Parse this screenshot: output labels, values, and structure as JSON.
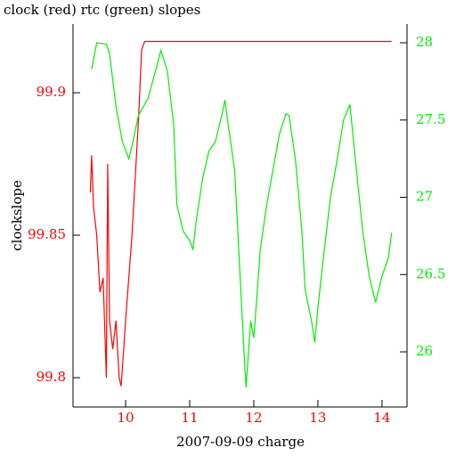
{
  "chart_data": {
    "type": "line",
    "title": "clock (red) rtc (green) slopes",
    "x_label": "2007-09-09 charge",
    "y_label": "clockslope",
    "xlim": [
      9.18,
      14.39
    ],
    "xticks": [
      10,
      11,
      12,
      13,
      14
    ],
    "ylim": [
      99.7897,
      99.9241
    ],
    "yticks": [
      99.8,
      99.85,
      99.9
    ],
    "y2lim": [
      25.643,
      28.121
    ],
    "y2ticks": [
      26,
      26.5,
      27,
      27.5,
      28
    ],
    "series": [
      {
        "name": "clock",
        "color": "#ff0000",
        "x": [
          9.45,
          9.47,
          9.5,
          9.55,
          9.6,
          9.65,
          9.7,
          9.72,
          9.75,
          9.8,
          9.85,
          9.9,
          9.93,
          9.97,
          10.0,
          10.05,
          10.1,
          10.15,
          10.2,
          10.25,
          10.28,
          10.3,
          14.15
        ],
        "values": [
          99.865,
          99.878,
          99.86,
          99.85,
          99.83,
          99.835,
          99.8,
          99.875,
          99.82,
          99.81,
          99.82,
          99.8,
          99.797,
          99.81,
          99.82,
          99.835,
          99.85,
          99.87,
          99.89,
          99.915,
          99.917,
          99.918,
          99.918
        ]
      },
      {
        "name": "rtc",
        "color": "#00ee00",
        "axis": "y2",
        "x": [
          9.47,
          9.55,
          9.7,
          9.75,
          9.85,
          9.95,
          10.05,
          10.1,
          10.2,
          10.35,
          10.5,
          10.55,
          10.65,
          10.75,
          10.8,
          10.9,
          11.0,
          11.05,
          11.1,
          11.2,
          11.3,
          11.4,
          11.5,
          11.55,
          11.6,
          11.7,
          11.75,
          11.85,
          11.88,
          11.95,
          12.0,
          12.05,
          12.1,
          12.2,
          12.3,
          12.4,
          12.5,
          12.55,
          12.65,
          12.75,
          12.8,
          12.9,
          12.95,
          13.0,
          13.1,
          13.2,
          13.3,
          13.4,
          13.5,
          13.6,
          13.7,
          13.8,
          13.9,
          14.0,
          14.1,
          14.15
        ],
        "values": [
          27.83,
          28.0,
          27.99,
          27.93,
          27.59,
          27.36,
          27.25,
          27.33,
          27.53,
          27.64,
          27.87,
          27.95,
          27.82,
          27.47,
          26.95,
          26.78,
          26.72,
          26.66,
          26.84,
          27.12,
          27.3,
          27.36,
          27.53,
          27.63,
          27.47,
          27.18,
          26.78,
          25.97,
          25.77,
          26.2,
          26.09,
          26.37,
          26.66,
          26.95,
          27.18,
          27.41,
          27.54,
          27.53,
          27.24,
          26.78,
          26.4,
          26.2,
          26.06,
          26.29,
          26.66,
          27.01,
          27.24,
          27.5,
          27.6,
          27.18,
          26.78,
          26.49,
          26.32,
          26.49,
          26.61,
          26.77
        ]
      }
    ]
  }
}
